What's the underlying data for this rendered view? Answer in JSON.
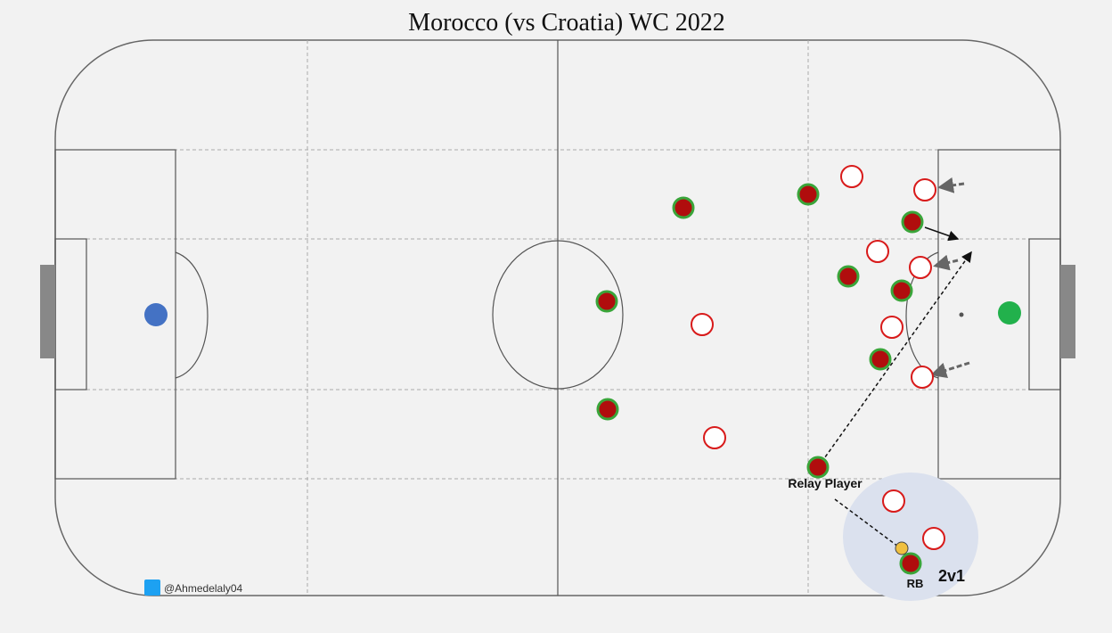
{
  "title": "Morocco (vs Croatia) WC 2022",
  "annotations": {
    "relay_player": "Relay Player",
    "rb": "RB",
    "two_v_one": "2v1"
  },
  "credit": "@Ahmedelaly04"
}
